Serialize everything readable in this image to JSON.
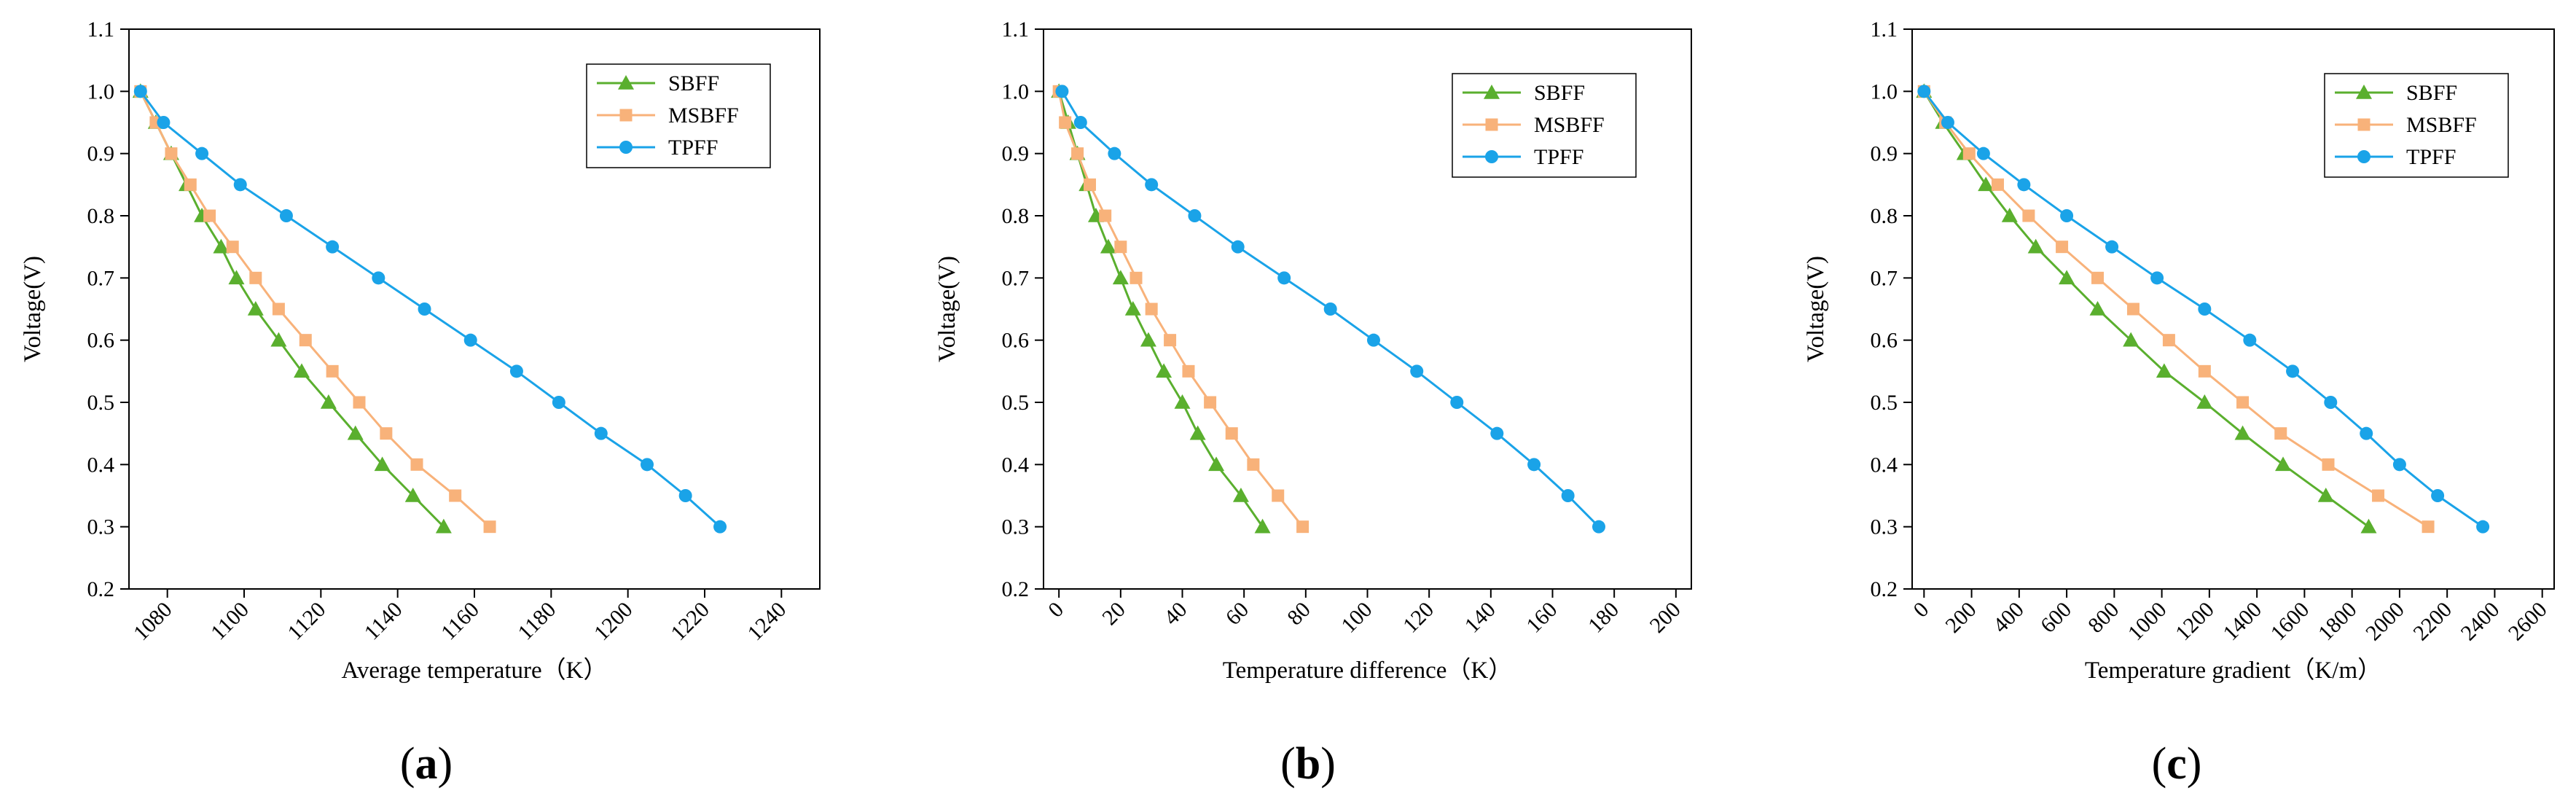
{
  "chart_data": [
    {
      "type": "line",
      "panel_label": "a",
      "xlabel": "Average temperature（K）",
      "ylabel": "Voltage(V)",
      "xlim": [
        1070,
        1250
      ],
      "ylim": [
        0.2,
        1.1
      ],
      "xticks": [
        1080,
        1100,
        1120,
        1140,
        1160,
        1180,
        1200,
        1220,
        1240
      ],
      "yticks": [
        0.2,
        0.3,
        0.4,
        0.5,
        0.6,
        0.7,
        0.8,
        0.9,
        1.0,
        1.1
      ],
      "x_tick_rotation": -45,
      "legend_position": "top-right",
      "series": [
        {
          "name": "SBFF",
          "color": "#5aaf2e",
          "marker": "triangle",
          "x": [
            1073,
            1077,
            1081,
            1085,
            1089,
            1094,
            1098,
            1103,
            1109,
            1115,
            1122,
            1129,
            1136,
            1144,
            1152
          ],
          "y": [
            1.0,
            0.95,
            0.9,
            0.85,
            0.8,
            0.75,
            0.7,
            0.65,
            0.6,
            0.55,
            0.5,
            0.45,
            0.4,
            0.35,
            0.3
          ]
        },
        {
          "name": "MSBFF",
          "color": "#f8b27a",
          "marker": "square",
          "x": [
            1073,
            1077,
            1081,
            1086,
            1091,
            1097,
            1103,
            1109,
            1116,
            1123,
            1130,
            1137,
            1145,
            1155,
            1164
          ],
          "y": [
            1.0,
            0.95,
            0.9,
            0.85,
            0.8,
            0.75,
            0.7,
            0.65,
            0.6,
            0.55,
            0.5,
            0.45,
            0.4,
            0.35,
            0.3
          ]
        },
        {
          "name": "TPFF",
          "color": "#1aa3e8",
          "marker": "circle",
          "x": [
            1073,
            1079,
            1089,
            1099,
            1111,
            1123,
            1135,
            1147,
            1159,
            1171,
            1182,
            1193,
            1205,
            1215,
            1224
          ],
          "y": [
            1.0,
            0.95,
            0.9,
            0.85,
            0.8,
            0.75,
            0.7,
            0.65,
            0.6,
            0.55,
            0.5,
            0.45,
            0.4,
            0.35,
            0.3
          ]
        }
      ]
    },
    {
      "type": "line",
      "panel_label": "b",
      "xlabel": "Temperature difference（K）",
      "ylabel": "Voltage(V)",
      "xlim": [
        -5,
        205
      ],
      "ylim": [
        0.2,
        1.1
      ],
      "xticks": [
        0,
        20,
        40,
        60,
        80,
        100,
        120,
        140,
        160,
        180,
        200
      ],
      "yticks": [
        0.2,
        0.3,
        0.4,
        0.5,
        0.6,
        0.7,
        0.8,
        0.9,
        1.0,
        1.1
      ],
      "x_tick_rotation": -45,
      "legend_position": "top-right",
      "series": [
        {
          "name": "SBFF",
          "color": "#5aaf2e",
          "marker": "triangle",
          "x": [
            0,
            3,
            6,
            9,
            12,
            16,
            20,
            24,
            29,
            34,
            40,
            45,
            51,
            59,
            66
          ],
          "y": [
            1.0,
            0.95,
            0.9,
            0.85,
            0.8,
            0.75,
            0.7,
            0.65,
            0.6,
            0.55,
            0.5,
            0.45,
            0.4,
            0.35,
            0.3
          ]
        },
        {
          "name": "MSBFF",
          "color": "#f8b27a",
          "marker": "square",
          "x": [
            0,
            2,
            6,
            10,
            15,
            20,
            25,
            30,
            36,
            42,
            49,
            56,
            63,
            71,
            79
          ],
          "y": [
            1.0,
            0.95,
            0.9,
            0.85,
            0.8,
            0.75,
            0.7,
            0.65,
            0.6,
            0.55,
            0.5,
            0.45,
            0.4,
            0.35,
            0.3
          ]
        },
        {
          "name": "TPFF",
          "color": "#1aa3e8",
          "marker": "circle",
          "x": [
            1,
            7,
            18,
            30,
            44,
            58,
            73,
            88,
            102,
            116,
            129,
            142,
            154,
            165,
            175
          ],
          "y": [
            1.0,
            0.95,
            0.9,
            0.85,
            0.8,
            0.75,
            0.7,
            0.65,
            0.6,
            0.55,
            0.5,
            0.45,
            0.4,
            0.35,
            0.3
          ]
        }
      ]
    },
    {
      "type": "line",
      "panel_label": "c",
      "xlabel": "Temperature gradient（K/m）",
      "ylabel": "Voltage(V)",
      "xlim": [
        -50,
        2650
      ],
      "ylim": [
        0.2,
        1.1
      ],
      "xticks": [
        0,
        200,
        400,
        600,
        800,
        1000,
        1200,
        1400,
        1600,
        1800,
        2000,
        2200,
        2400,
        2600
      ],
      "yticks": [
        0.2,
        0.3,
        0.4,
        0.5,
        0.6,
        0.7,
        0.8,
        0.9,
        1.0,
        1.1
      ],
      "x_tick_rotation": -45,
      "legend_position": "top-right",
      "series": [
        {
          "name": "SBFF",
          "color": "#5aaf2e",
          "marker": "triangle",
          "x": [
            0,
            80,
            170,
            260,
            360,
            470,
            600,
            730,
            870,
            1010,
            1180,
            1340,
            1510,
            1690,
            1870
          ],
          "y": [
            1.0,
            0.95,
            0.9,
            0.85,
            0.8,
            0.75,
            0.7,
            0.65,
            0.6,
            0.55,
            0.5,
            0.45,
            0.4,
            0.35,
            0.3
          ]
        },
        {
          "name": "MSBFF",
          "color": "#f8b27a",
          "marker": "square",
          "x": [
            0,
            90,
            190,
            310,
            440,
            580,
            730,
            880,
            1030,
            1180,
            1340,
            1500,
            1700,
            1910,
            2120
          ],
          "y": [
            1.0,
            0.95,
            0.9,
            0.85,
            0.8,
            0.75,
            0.7,
            0.65,
            0.6,
            0.55,
            0.5,
            0.45,
            0.4,
            0.35,
            0.3
          ]
        },
        {
          "name": "TPFF",
          "color": "#1aa3e8",
          "marker": "circle",
          "x": [
            0,
            100,
            250,
            420,
            600,
            790,
            980,
            1180,
            1370,
            1550,
            1710,
            1860,
            2000,
            2160,
            2350
          ],
          "y": [
            1.0,
            0.95,
            0.9,
            0.85,
            0.8,
            0.75,
            0.7,
            0.65,
            0.6,
            0.55,
            0.5,
            0.45,
            0.4,
            0.35,
            0.3
          ]
        }
      ]
    }
  ]
}
